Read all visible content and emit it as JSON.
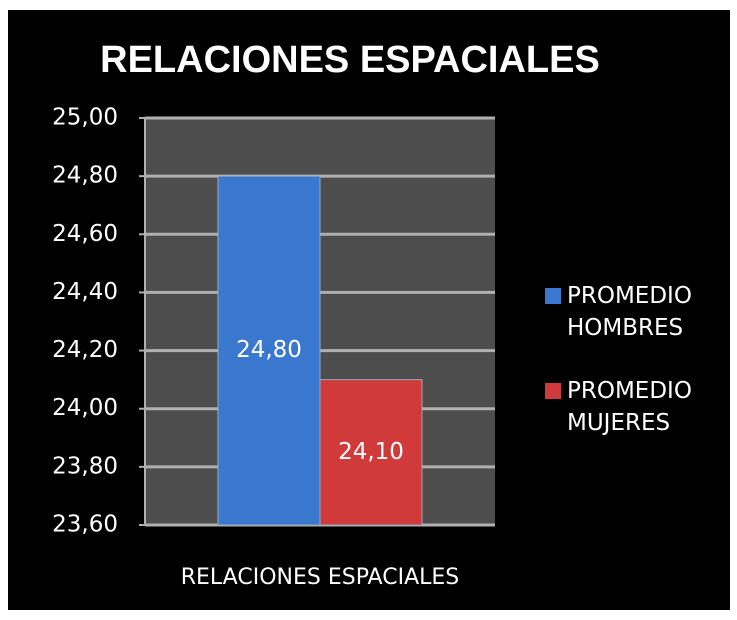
{
  "chart_data": {
    "type": "bar",
    "title": "RELACIONES ESPACIALES",
    "categories": [
      "RELACIONES ESPACIALES"
    ],
    "series": [
      {
        "name": "PROMEDIO HOMBRES",
        "color": "#3a78d0",
        "values": [
          24.8
        ],
        "value_labels": [
          "24,80"
        ]
      },
      {
        "name": "PROMEDIO MUJERES",
        "color": "#d03a3a",
        "values": [
          24.1
        ],
        "value_labels": [
          "24,10"
        ]
      }
    ],
    "ylim": [
      23.6,
      25.0
    ],
    "yticks": [
      {
        "value": 23.6,
        "label": "23,60"
      },
      {
        "value": 23.8,
        "label": "23,80"
      },
      {
        "value": 24.0,
        "label": "24,00"
      },
      {
        "value": 24.2,
        "label": "24,20"
      },
      {
        "value": 24.4,
        "label": "24,40"
      },
      {
        "value": 24.6,
        "label": "24,60"
      },
      {
        "value": 24.8,
        "label": "24,80"
      },
      {
        "value": 25.0,
        "label": "25,00"
      }
    ],
    "grid": true,
    "legend": "right"
  }
}
